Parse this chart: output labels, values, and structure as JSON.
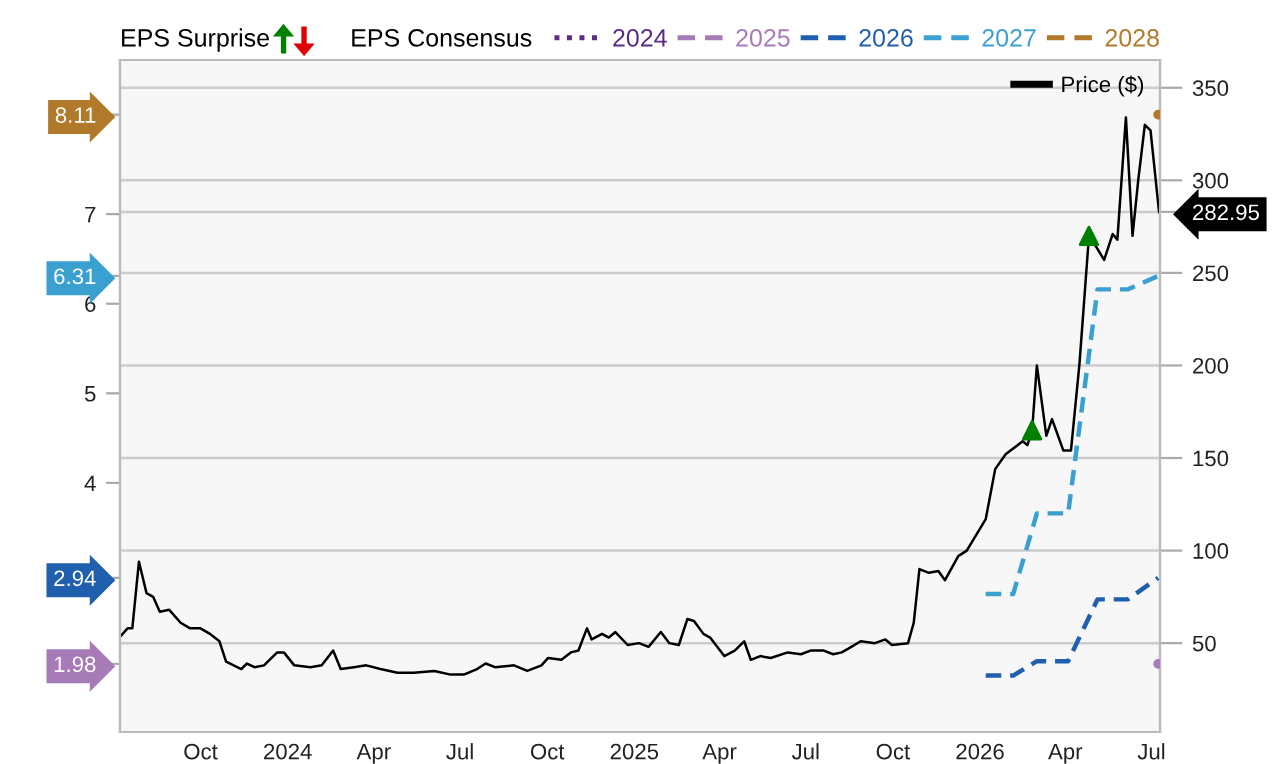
{
  "chart_data": {
    "type": "line",
    "annotations": [
      "EPS Surprise"
    ],
    "legend_title": "EPS Consensus",
    "xlim": [
      "2023-07-08",
      "2026-07-10"
    ],
    "xticks": [
      {
        "value": "2023-10-01",
        "label": "Oct"
      },
      {
        "value": "2024-01-01",
        "label": "2024"
      },
      {
        "value": "2024-04-01",
        "label": "Apr"
      },
      {
        "value": "2024-07-01",
        "label": "Jul"
      },
      {
        "value": "2024-10-01",
        "label": "Oct"
      },
      {
        "value": "2025-01-01",
        "label": "2025"
      },
      {
        "value": "2025-04-01",
        "label": "Apr"
      },
      {
        "value": "2025-07-01",
        "label": "Jul"
      },
      {
        "value": "2025-10-01",
        "label": "Oct"
      },
      {
        "value": "2026-01-01",
        "label": "2026"
      },
      {
        "value": "2026-04-01",
        "label": "Apr"
      },
      {
        "value": "2026-07-01",
        "label": "Jul"
      }
    ],
    "ylim": [
      1.22,
      8.72
    ],
    "yticks": [
      1.98,
      2.94,
      4,
      5,
      6,
      6.31,
      7,
      8.11
    ],
    "y2lim": [
      2,
      365
    ],
    "y2ticks": [
      50,
      100,
      150,
      200,
      250,
      282.95,
      300,
      350
    ],
    "grid": true,
    "legend": "top",
    "series": [
      {
        "name": "2024",
        "color": "#5b2c83",
        "line_style": "dotted"
      },
      {
        "name": "2025",
        "color": "#a77bb8",
        "line_style": "dashed",
        "marker": "circle",
        "x": [
          "2026-07-08"
        ],
        "values": [
          1.98
        ]
      },
      {
        "name": "2026",
        "color": "#1f5fad",
        "line_style": "dashed",
        "x": [
          "2026-01-07",
          "2026-02-05",
          "2026-03-02",
          "2026-04-04",
          "2026-05-05",
          "2026-06-06",
          "2026-07-08"
        ],
        "values": [
          1.85,
          1.85,
          2.01,
          2.01,
          2.7,
          2.7,
          2.94
        ]
      },
      {
        "name": "2027",
        "color": "#3aa0d0",
        "line_style": "dashed",
        "x": [
          "2026-01-07",
          "2026-02-05",
          "2026-03-02",
          "2026-04-04",
          "2026-05-05",
          "2026-06-06",
          "2026-07-08"
        ],
        "values": [
          2.76,
          2.76,
          3.66,
          3.66,
          6.16,
          6.16,
          6.31
        ]
      },
      {
        "name": "2028",
        "color": "#b07a2a",
        "line_style": "dashed",
        "marker": "circle",
        "x": [
          "2026-07-08"
        ],
        "values": [
          8.11
        ]
      },
      {
        "name": "Price ($)",
        "color": "#000000",
        "axis": "y2",
        "line_style": "solid",
        "x": [
          "2023-07-09",
          "2023-07-16",
          "2023-07-21",
          "2023-07-28",
          "2023-08-05",
          "2023-08-12",
          "2023-08-19",
          "2023-08-29",
          "2023-09-10",
          "2023-09-20",
          "2023-10-01",
          "2023-10-11",
          "2023-10-21",
          "2023-10-28",
          "2023-11-13",
          "2023-11-19",
          "2023-11-27",
          "2023-12-07",
          "2023-12-21",
          "2023-12-28",
          "2024-01-08",
          "2024-01-25",
          "2024-02-06",
          "2024-02-18",
          "2024-02-26",
          "2024-03-11",
          "2024-03-24",
          "2024-04-08",
          "2024-04-26",
          "2024-05-13",
          "2024-06-04",
          "2024-06-21",
          "2024-07-05",
          "2024-07-19",
          "2024-07-28",
          "2024-08-07",
          "2024-08-27",
          "2024-09-10",
          "2024-09-25",
          "2024-10-02",
          "2024-10-16",
          "2024-10-26",
          "2024-11-03",
          "2024-11-12",
          "2024-11-17",
          "2024-11-28",
          "2024-12-05",
          "2024-12-12",
          "2024-12-25",
          "2025-01-06",
          "2025-01-16",
          "2025-01-29",
          "2025-02-07",
          "2025-02-17",
          "2025-02-26",
          "2025-03-05",
          "2025-03-15",
          "2025-03-22",
          "2025-04-06",
          "2025-04-17",
          "2025-04-27",
          "2025-05-04",
          "2025-05-14",
          "2025-05-25",
          "2025-06-12",
          "2025-06-26",
          "2025-07-06",
          "2025-07-20",
          "2025-07-30",
          "2025-08-08",
          "2025-08-15",
          "2025-08-28",
          "2025-09-12",
          "2025-09-23",
          "2025-09-30",
          "2025-10-17",
          "2025-10-23",
          "2025-10-29",
          "2025-11-08",
          "2025-11-18",
          "2025-11-25",
          "2025-12-09",
          "2025-12-18",
          "2026-01-07",
          "2026-01-17",
          "2026-01-28",
          "2026-02-15",
          "2026-02-20",
          "2026-02-25",
          "2026-03-02",
          "2026-03-12",
          "2026-03-18",
          "2026-03-30",
          "2026-04-07",
          "2026-04-16",
          "2026-04-26",
          "2026-05-05",
          "2026-05-12",
          "2026-05-21",
          "2026-05-26",
          "2026-06-04",
          "2026-06-11",
          "2026-06-17",
          "2026-06-24",
          "2026-06-30",
          "2026-07-09"
        ],
        "values": [
          54,
          58,
          58,
          94,
          77,
          75,
          67,
          68,
          61,
          58,
          58,
          55,
          51,
          40,
          36,
          39,
          37,
          38,
          45,
          45,
          38,
          37,
          38,
          46,
          36,
          37,
          38,
          36,
          34,
          34,
          35,
          33,
          33,
          36,
          39,
          37,
          38,
          35,
          38,
          42,
          41,
          45,
          46,
          58,
          52,
          55,
          53,
          56,
          49,
          50,
          48,
          56,
          50,
          49,
          63,
          62,
          55,
          53,
          43,
          46,
          51,
          41,
          43,
          42,
          45,
          44,
          46,
          46,
          44,
          45,
          47,
          51,
          50,
          52,
          49,
          50,
          61,
          90,
          88,
          89,
          84,
          97,
          100,
          117,
          144,
          152,
          159,
          157,
          165,
          200,
          162,
          171,
          154,
          154,
          201,
          270,
          263,
          257,
          271,
          268,
          334,
          270,
          300,
          330,
          327,
          282.95
        ]
      },
      {
        "type": "scatter",
        "color": "#008000",
        "axis": "y2",
        "marker": "triangle",
        "x": [
          "2026-02-25",
          "2026-04-26"
        ],
        "values": [
          165,
          270
        ]
      }
    ]
  }
}
